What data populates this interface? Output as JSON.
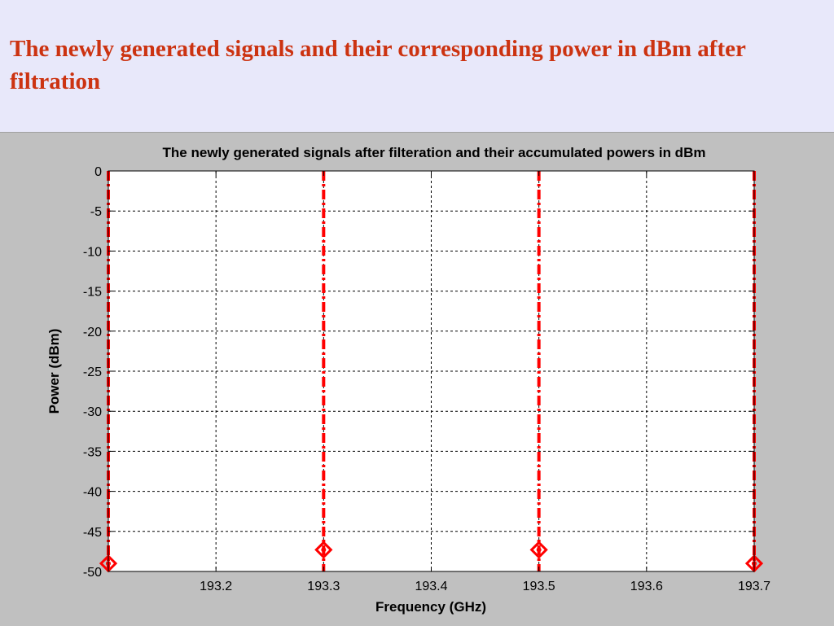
{
  "slide": {
    "title": "The newly generated signals and their corresponding power in dBm after filtration"
  },
  "colors": {
    "background": "#e8e8fa",
    "title": "#cc3311",
    "figure_background": "#c0c0c0",
    "axes_background": "#ffffff",
    "series": "#ff0000",
    "grid": "#000000"
  },
  "chart_data": {
    "type": "stem",
    "title": "The newly generated signals after filteration and their accumulated powers in dBm",
    "xlabel": "Frequency (GHz)",
    "ylabel": "Power (dBm)",
    "xlim": [
      193.1,
      193.7
    ],
    "ylim": [
      -50,
      0
    ],
    "xticks": [
      193.2,
      193.3,
      193.4,
      193.5,
      193.6,
      193.7
    ],
    "yticks": [
      0,
      -5,
      -10,
      -15,
      -20,
      -25,
      -30,
      -35,
      -40,
      -45,
      -50
    ],
    "grid": true,
    "stem_style": "dash-dot",
    "marker": "diamond",
    "series": [
      {
        "x": [
          193.1,
          193.3,
          193.5,
          193.7
        ],
        "y": [
          -49,
          -47.3,
          -47.3,
          -49
        ],
        "color": "#ff0000"
      }
    ]
  }
}
